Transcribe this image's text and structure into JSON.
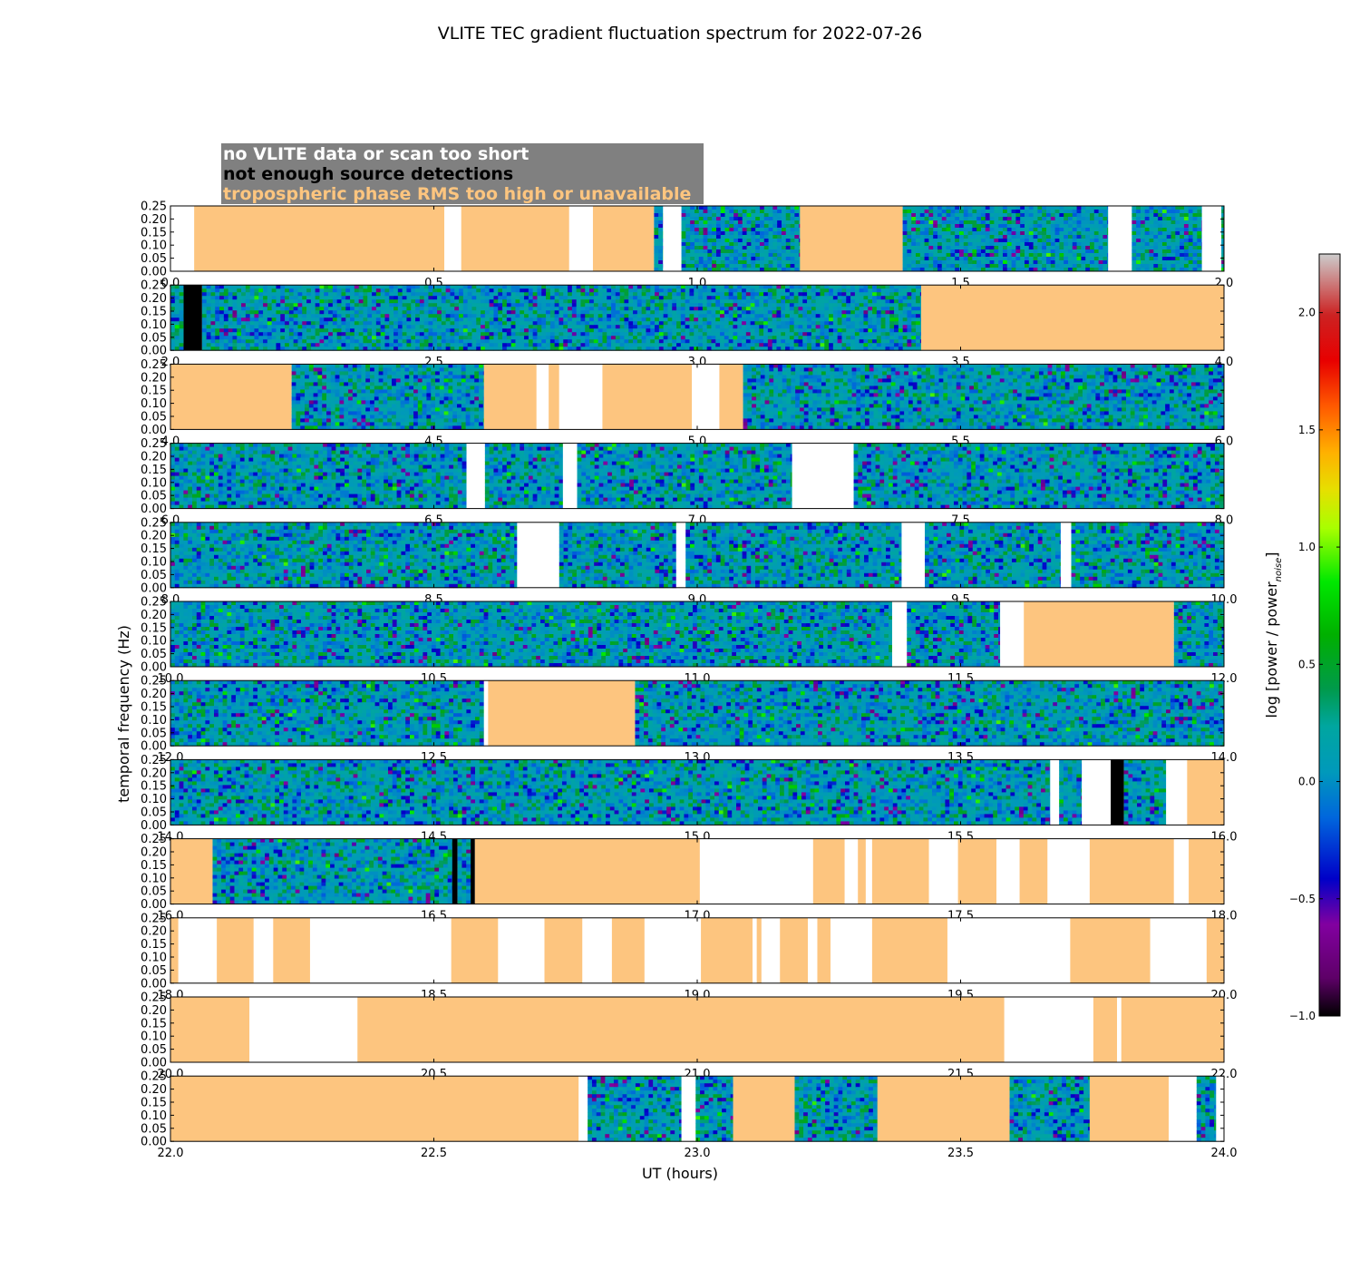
{
  "chart_data": {
    "type": "heatmap",
    "title": "VLITE TEC gradient fluctuation spectrum for 2022-07-26",
    "xlabel": "UT (hours)",
    "ylabel": "temporal frequency (Hz)",
    "ylim": [
      0,
      0.25
    ],
    "y_ticks": [
      "0.00",
      "0.05",
      "0.10",
      "0.15",
      "0.20",
      "0.25"
    ],
    "colorbar": {
      "label": "log [power / power",
      "label_sub": "noise",
      "label_end": "]",
      "range": [
        -1.0,
        2.25
      ],
      "ticks": [
        "−1.0",
        "−0.5",
        "0.0",
        "0.5",
        "1.0",
        "1.5",
        "2.0"
      ],
      "colormap": "nipy_spectral"
    },
    "legend": {
      "background": "#808080",
      "entries": [
        {
          "text": "no VLITE data or scan too short",
          "color": "#ffffff",
          "fill": "#ffffff"
        },
        {
          "text": "not enough source detections",
          "color": "#000000",
          "fill": "#000000"
        },
        {
          "text": "tropospheric phase RMS too high or unavailable",
          "color": "#fdc57f",
          "fill": "#fdc57f"
        }
      ]
    },
    "colors": {
      "nodata": "#ffffff",
      "nodetect": "#000000",
      "trop": "#fdc57f"
    },
    "panels": [
      {
        "range": [
          0,
          2
        ],
        "x_ticks": [
          "0.0",
          "0.5",
          "1.0",
          "1.5",
          "2.0"
        ],
        "segments": [
          [
            "W",
            0,
            0.045
          ],
          [
            "T",
            0.045,
            0.52
          ],
          [
            "W",
            0.52,
            0.552
          ],
          [
            "T",
            0.552,
            0.757
          ],
          [
            "W",
            0.757,
            0.802
          ],
          [
            "T",
            0.802,
            0.918
          ],
          [
            "D",
            0.918,
            0.935
          ],
          [
            "W",
            0.935,
            0.97
          ],
          [
            "D",
            0.97,
            1.195
          ],
          [
            "T",
            1.195,
            1.39
          ],
          [
            "D",
            1.39,
            1.78
          ],
          [
            "W",
            1.78,
            1.825
          ],
          [
            "D",
            1.825,
            1.958
          ],
          [
            "W",
            1.958,
            1.995
          ],
          [
            "D",
            1.995,
            2.0
          ]
        ]
      },
      {
        "range": [
          2,
          4
        ],
        "x_ticks": [
          "2.0",
          "2.5",
          "3.0",
          "3.5",
          "4.0"
        ],
        "segments": [
          [
            "D",
            2,
            2.025
          ],
          [
            "K",
            2.025,
            2.06
          ],
          [
            "D",
            2.06,
            3.425
          ],
          [
            "T",
            3.425,
            4.0
          ]
        ]
      },
      {
        "range": [
          4,
          6
        ],
        "x_ticks": [
          "4.0",
          "4.5",
          "5.0",
          "5.5",
          "6.0"
        ],
        "segments": [
          [
            "T",
            4,
            4.23
          ],
          [
            "D",
            4.23,
            4.595
          ],
          [
            "T",
            4.595,
            4.695
          ],
          [
            "W",
            4.695,
            4.718
          ],
          [
            "T",
            4.718,
            4.738
          ],
          [
            "W",
            4.738,
            4.82
          ],
          [
            "T",
            4.82,
            4.99
          ],
          [
            "W",
            4.99,
            5.042
          ],
          [
            "T",
            5.042,
            5.087
          ],
          [
            "D",
            5.087,
            6.0
          ]
        ]
      },
      {
        "range": [
          6,
          8
        ],
        "x_ticks": [
          "6.0",
          "6.5",
          "7.0",
          "7.5",
          "8.0"
        ],
        "segments": [
          [
            "D",
            6,
            6.562
          ],
          [
            "W",
            6.562,
            6.597
          ],
          [
            "D",
            6.597,
            6.745
          ],
          [
            "W",
            6.745,
            6.772
          ],
          [
            "D",
            6.772,
            7.18
          ],
          [
            "W",
            7.18,
            7.297
          ],
          [
            "D",
            7.297,
            8.0
          ]
        ]
      },
      {
        "range": [
          8,
          10
        ],
        "x_ticks": [
          "8.0",
          "8.5",
          "9.0",
          "9.5",
          "10.0"
        ],
        "segments": [
          [
            "D",
            8,
            8.658
          ],
          [
            "W",
            8.658,
            8.738
          ],
          [
            "D",
            8.738,
            8.96
          ],
          [
            "W",
            8.96,
            8.978
          ],
          [
            "D",
            8.978,
            9.388
          ],
          [
            "W",
            9.388,
            9.432
          ],
          [
            "D",
            9.432,
            9.69
          ],
          [
            "W",
            9.69,
            9.71
          ],
          [
            "D",
            9.71,
            10.0
          ]
        ]
      },
      {
        "range": [
          10,
          12
        ],
        "x_ticks": [
          "10.0",
          "10.5",
          "11.0",
          "11.5",
          "12.0"
        ],
        "segments": [
          [
            "D",
            10,
            11.37
          ],
          [
            "W",
            11.37,
            11.398
          ],
          [
            "D",
            11.398,
            11.575
          ],
          [
            "W",
            11.575,
            11.62
          ],
          [
            "T",
            11.62,
            11.905
          ],
          [
            "D",
            11.905,
            12.0
          ]
        ]
      },
      {
        "range": [
          12,
          14
        ],
        "x_ticks": [
          "12.0",
          "12.5",
          "13.0",
          "13.5",
          "14.0"
        ],
        "segments": [
          [
            "D",
            12,
            12.595
          ],
          [
            "W",
            12.595,
            12.603
          ],
          [
            "T",
            12.603,
            12.882
          ],
          [
            "D",
            12.882,
            14.0
          ]
        ]
      },
      {
        "range": [
          14,
          16
        ],
        "x_ticks": [
          "14.0",
          "14.5",
          "15.0",
          "15.5",
          "16.0"
        ],
        "segments": [
          [
            "D",
            14,
            15.67
          ],
          [
            "W",
            15.67,
            15.687
          ],
          [
            "D",
            15.687,
            15.73
          ],
          [
            "W",
            15.73,
            15.785
          ],
          [
            "K",
            15.785,
            15.81
          ],
          [
            "D",
            15.81,
            15.89
          ],
          [
            "W",
            15.89,
            15.93
          ],
          [
            "T",
            15.93,
            16.0
          ]
        ]
      },
      {
        "range": [
          16,
          18
        ],
        "x_ticks": [
          "16.0",
          "16.5",
          "17.0",
          "17.5",
          "18.0"
        ],
        "segments": [
          [
            "T",
            16,
            16.08
          ],
          [
            "D",
            16.08,
            16.535
          ],
          [
            "K",
            16.535,
            16.545
          ],
          [
            "D",
            16.545,
            16.57
          ],
          [
            "K",
            16.57,
            16.578
          ],
          [
            "T",
            16.578,
            17.005
          ],
          [
            "W",
            17.005,
            17.22
          ],
          [
            "T",
            17.22,
            17.28
          ],
          [
            "W",
            17.28,
            17.305
          ],
          [
            "T",
            17.305,
            17.32
          ],
          [
            "W",
            17.32,
            17.332
          ],
          [
            "T",
            17.332,
            17.44
          ],
          [
            "W",
            17.44,
            17.495
          ],
          [
            "T",
            17.495,
            17.568
          ],
          [
            "W",
            17.568,
            17.612
          ],
          [
            "T",
            17.612,
            17.665
          ],
          [
            "W",
            17.665,
            17.745
          ],
          [
            "T",
            17.745,
            17.905
          ],
          [
            "W",
            17.905,
            17.933
          ],
          [
            "T",
            17.933,
            18.0
          ]
        ]
      },
      {
        "range": [
          18,
          20
        ],
        "x_ticks": [
          "18.0",
          "18.5",
          "19.0",
          "19.5",
          "20.0"
        ],
        "segments": [
          [
            "T",
            18,
            18.015
          ],
          [
            "W",
            18.015,
            18.088
          ],
          [
            "T",
            18.088,
            18.158
          ],
          [
            "W",
            18.158,
            18.195
          ],
          [
            "T",
            18.195,
            18.265
          ],
          [
            "W",
            18.265,
            18.533
          ],
          [
            "T",
            18.533,
            18.622
          ],
          [
            "W",
            18.622,
            18.71
          ],
          [
            "T",
            18.71,
            18.782
          ],
          [
            "W",
            18.782,
            18.838
          ],
          [
            "T",
            18.838,
            18.9
          ],
          [
            "W",
            18.9,
            19.007
          ],
          [
            "T",
            19.007,
            19.105
          ],
          [
            "W",
            19.105,
            19.113
          ],
          [
            "T",
            19.113,
            19.122
          ],
          [
            "W",
            19.122,
            19.157
          ],
          [
            "T",
            19.157,
            19.21
          ],
          [
            "W",
            19.21,
            19.228
          ],
          [
            "T",
            19.228,
            19.253
          ],
          [
            "W",
            19.253,
            19.332
          ],
          [
            "T",
            19.332,
            19.475
          ],
          [
            "W",
            19.475,
            19.708
          ],
          [
            "T",
            19.708,
            19.86
          ],
          [
            "W",
            19.86,
            19.967
          ],
          [
            "T",
            19.967,
            20.0
          ]
        ]
      },
      {
        "range": [
          20,
          22
        ],
        "x_ticks": [
          "20.0",
          "20.5",
          "21.0",
          "21.5",
          "22.0"
        ],
        "segments": [
          [
            "T",
            20,
            20.15
          ],
          [
            "W",
            20.15,
            20.355
          ],
          [
            "T",
            20.355,
            21.583
          ],
          [
            "W",
            21.583,
            21.752
          ],
          [
            "T",
            21.752,
            21.797
          ],
          [
            "W",
            21.797,
            21.805
          ],
          [
            "T",
            21.805,
            22.0
          ]
        ]
      },
      {
        "range": [
          22,
          24
        ],
        "x_ticks": [
          "22.0",
          "22.5",
          "23.0",
          "23.5",
          "24.0"
        ],
        "segments": [
          [
            "T",
            22,
            22.775
          ],
          [
            "W",
            22.775,
            22.792
          ],
          [
            "D",
            22.792,
            22.97
          ],
          [
            "W",
            22.97,
            22.997
          ],
          [
            "D",
            22.997,
            23.068
          ],
          [
            "T",
            23.068,
            23.185
          ],
          [
            "D",
            23.185,
            23.342
          ],
          [
            "T",
            23.342,
            23.593
          ],
          [
            "D",
            23.593,
            23.745
          ],
          [
            "T",
            23.745,
            23.895
          ],
          [
            "W",
            23.895,
            23.948
          ],
          [
            "D",
            23.948,
            23.985
          ],
          [
            "W",
            23.985,
            24.0
          ]
        ]
      }
    ]
  }
}
